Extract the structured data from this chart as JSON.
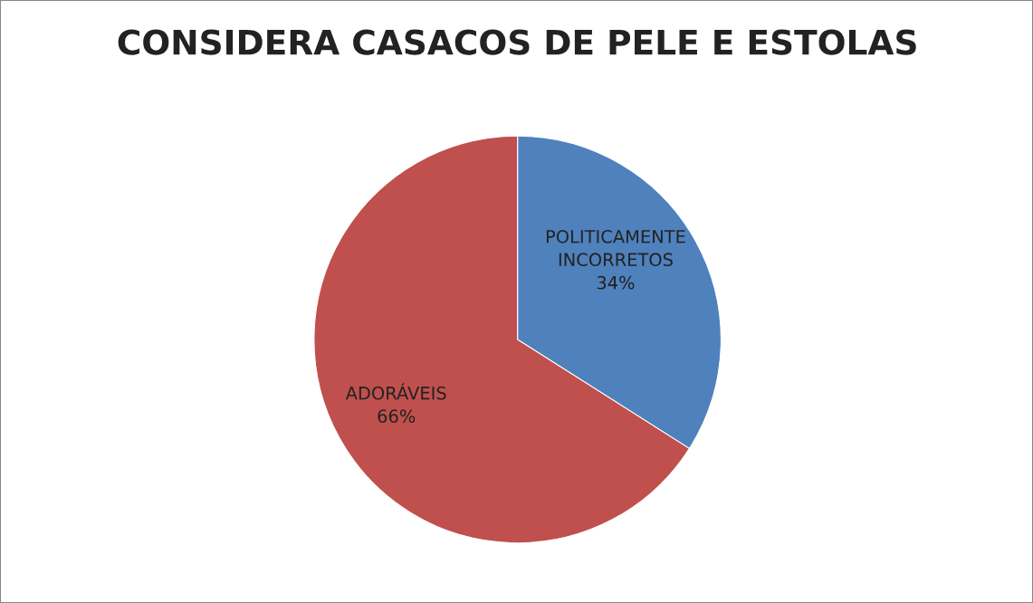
{
  "chart_data": {
    "type": "pie",
    "title": "CONSIDERA CASACOS DE PELE E ESTOLAS",
    "categories": [
      "POLITICAMENTE INCORRETOS",
      "ADORÁVEIS"
    ],
    "values": [
      34,
      66
    ],
    "colors": [
      "#4f81bd",
      "#c0504d"
    ],
    "value_labels": [
      "34%",
      "66%"
    ],
    "legend": false
  }
}
